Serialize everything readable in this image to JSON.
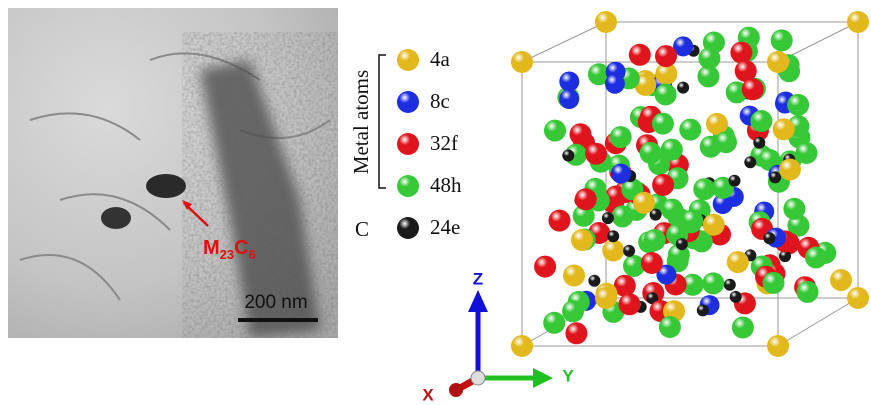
{
  "micrograph": {
    "label": [
      "M",
      "23",
      "C",
      "6"
    ],
    "scale_bar": "200 nm"
  },
  "legend": {
    "group_label": "Metal atoms",
    "carbon_label": "C",
    "entries": [
      {
        "label": "4a",
        "color": "#e2b81c"
      },
      {
        "label": "8c",
        "color": "#1c2ee0"
      },
      {
        "label": "32f",
        "color": "#e0141c"
      },
      {
        "label": "48h",
        "color": "#36c836"
      },
      {
        "label": "24e",
        "color": "#1a1a1a"
      }
    ]
  },
  "axes": {
    "z": "Z",
    "x": "X",
    "y": "Y"
  }
}
